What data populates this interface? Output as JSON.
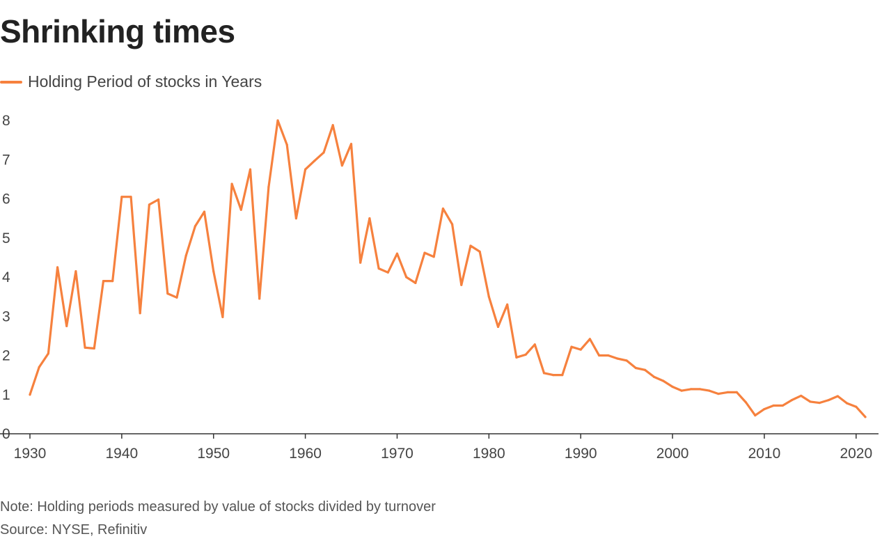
{
  "title": "Shrinking times",
  "note": "Note: Holding periods measured by value of stocks divided by turnover",
  "source": "Source: NYSE, Refinitiv",
  "colors": {
    "line": "#f6813e",
    "axis": "#333333",
    "text": "#444444"
  },
  "chart_data": {
    "type": "line",
    "title": "Shrinking times",
    "xlabel": "",
    "ylabel": "",
    "xlim": [
      1930,
      2021
    ],
    "ylim": [
      0,
      8
    ],
    "x_ticks": [
      1930,
      1940,
      1950,
      1960,
      1970,
      1980,
      1990,
      2000,
      2010,
      2020
    ],
    "y_ticks": [
      0,
      1,
      2,
      3,
      4,
      5,
      6,
      7,
      8
    ],
    "grid": false,
    "legend_position": "top-left",
    "series": [
      {
        "name": "Holding Period of stocks in Years",
        "x": [
          1930,
          1931,
          1932,
          1933,
          1934,
          1935,
          1936,
          1937,
          1938,
          1939,
          1940,
          1941,
          1942,
          1943,
          1944,
          1945,
          1946,
          1947,
          1948,
          1949,
          1950,
          1951,
          1952,
          1953,
          1954,
          1955,
          1956,
          1957,
          1958,
          1959,
          1960,
          1961,
          1962,
          1963,
          1964,
          1965,
          1966,
          1967,
          1968,
          1969,
          1970,
          1971,
          1972,
          1973,
          1974,
          1975,
          1976,
          1977,
          1978,
          1979,
          1980,
          1981,
          1982,
          1983,
          1984,
          1985,
          1986,
          1987,
          1988,
          1989,
          1990,
          1991,
          1992,
          1993,
          1994,
          1995,
          1996,
          1997,
          1998,
          1999,
          2000,
          2001,
          2002,
          2003,
          2004,
          2005,
          2006,
          2007,
          2008,
          2009,
          2010,
          2011,
          2012,
          2013,
          2014,
          2015,
          2016,
          2017,
          2018,
          2019,
          2020,
          2021
        ],
        "values": [
          1.0,
          1.7,
          2.05,
          4.25,
          2.75,
          4.15,
          2.2,
          2.18,
          3.9,
          3.9,
          6.05,
          6.05,
          3.08,
          5.85,
          5.98,
          3.58,
          3.48,
          4.55,
          5.3,
          5.67,
          4.15,
          2.98,
          6.38,
          5.72,
          6.75,
          3.45,
          6.3,
          8.0,
          7.38,
          5.5,
          6.75,
          6.97,
          7.18,
          7.88,
          6.85,
          7.4,
          4.37,
          5.5,
          4.22,
          4.12,
          4.6,
          4.0,
          3.85,
          4.62,
          4.52,
          5.75,
          5.35,
          3.8,
          4.8,
          4.65,
          3.5,
          2.73,
          3.3,
          1.95,
          2.02,
          2.28,
          1.55,
          1.5,
          1.5,
          2.22,
          2.15,
          2.42,
          2.0,
          2.0,
          1.92,
          1.87,
          1.68,
          1.63,
          1.45,
          1.35,
          1.2,
          1.1,
          1.14,
          1.14,
          1.1,
          1.02,
          1.06,
          1.06,
          0.8,
          0.47,
          0.63,
          0.72,
          0.72,
          0.86,
          0.97,
          0.82,
          0.79,
          0.86,
          0.96,
          0.78,
          0.69,
          0.43
        ]
      }
    ]
  }
}
